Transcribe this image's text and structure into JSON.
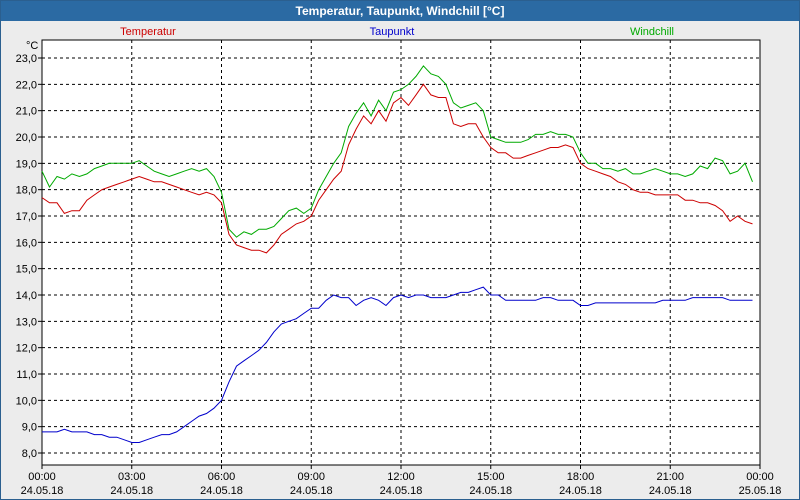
{
  "window": {
    "title": "Temperatur, Taupunkt, Windchill [°C]"
  },
  "colors": {
    "title_bg": "#2b6aa3",
    "temperatur": "#cc0000",
    "taupunkt": "#0000cc",
    "windchill": "#00aa00",
    "grid": "#000000",
    "plot_bg": "#ffffff"
  },
  "chart_data": {
    "type": "line",
    "title": "Temperatur, Taupunkt, Windchill [°C]",
    "ylabel": "°C",
    "ylim": [
      8.0,
      23.0
    ],
    "xlim": [
      0,
      24
    ],
    "grid": true,
    "yticks": [
      {
        "value": 8.0,
        "label": "8,0"
      },
      {
        "value": 9.0,
        "label": "9,0"
      },
      {
        "value": 10.0,
        "label": "10,0"
      },
      {
        "value": 11.0,
        "label": "11,0"
      },
      {
        "value": 12.0,
        "label": "12,0"
      },
      {
        "value": 13.0,
        "label": "13,0"
      },
      {
        "value": 14.0,
        "label": "14,0"
      },
      {
        "value": 15.0,
        "label": "15,0"
      },
      {
        "value": 16.0,
        "label": "16,0"
      },
      {
        "value": 17.0,
        "label": "17,0"
      },
      {
        "value": 18.0,
        "label": "18,0"
      },
      {
        "value": 19.0,
        "label": "19,0"
      },
      {
        "value": 20.0,
        "label": "20,0"
      },
      {
        "value": 21.0,
        "label": "21,0"
      },
      {
        "value": 22.0,
        "label": "22,0"
      },
      {
        "value": 23.0,
        "label": "23,0"
      }
    ],
    "xticks": [
      {
        "value": 0,
        "time": "00:00",
        "date": "24.05.18"
      },
      {
        "value": 3,
        "time": "03:00",
        "date": "24.05.18"
      },
      {
        "value": 6,
        "time": "06:00",
        "date": "24.05.18"
      },
      {
        "value": 9,
        "time": "09:00",
        "date": "24.05.18"
      },
      {
        "value": 12,
        "time": "12:00",
        "date": "24.05.18"
      },
      {
        "value": 15,
        "time": "15:00",
        "date": "24.05.18"
      },
      {
        "value": 18,
        "time": "18:00",
        "date": "24.05.18"
      },
      {
        "value": 21,
        "time": "21:00",
        "date": "24.05.18"
      },
      {
        "value": 24,
        "time": "00:00",
        "date": "25.05.18"
      }
    ],
    "series": [
      {
        "name": "Temperatur",
        "color": "#cc0000",
        "x": [
          0,
          0.25,
          0.5,
          0.75,
          1,
          1.25,
          1.5,
          1.75,
          2,
          2.25,
          2.5,
          2.75,
          3,
          3.25,
          3.5,
          3.75,
          4,
          4.25,
          4.5,
          4.75,
          5,
          5.25,
          5.5,
          5.75,
          6,
          6.25,
          6.5,
          6.75,
          7,
          7.25,
          7.5,
          7.75,
          8,
          8.25,
          8.5,
          8.75,
          9,
          9.25,
          9.5,
          9.75,
          10,
          10.25,
          10.5,
          10.75,
          11,
          11.25,
          11.5,
          11.75,
          12,
          12.25,
          12.5,
          12.75,
          13,
          13.25,
          13.5,
          13.75,
          14,
          14.25,
          14.5,
          14.75,
          15,
          15.25,
          15.5,
          15.75,
          16,
          16.25,
          16.5,
          16.75,
          17,
          17.25,
          17.5,
          17.75,
          18,
          18.25,
          18.5,
          18.75,
          19,
          19.25,
          19.5,
          19.75,
          20,
          20.25,
          20.5,
          20.75,
          21,
          21.25,
          21.5,
          21.75,
          22,
          22.25,
          22.5,
          22.75,
          23,
          23.25,
          23.5,
          23.75
        ],
        "y": [
          17.7,
          17.5,
          17.5,
          17.1,
          17.2,
          17.2,
          17.6,
          17.8,
          18.0,
          18.1,
          18.2,
          18.3,
          18.4,
          18.5,
          18.4,
          18.3,
          18.3,
          18.2,
          18.1,
          18.0,
          17.9,
          17.8,
          17.9,
          17.8,
          17.5,
          16.3,
          15.9,
          15.8,
          15.7,
          15.7,
          15.6,
          15.9,
          16.3,
          16.5,
          16.7,
          16.8,
          17.0,
          17.6,
          18.0,
          18.4,
          18.7,
          19.7,
          20.3,
          20.8,
          20.5,
          21.0,
          20.6,
          21.3,
          21.5,
          21.2,
          21.6,
          22.0,
          21.6,
          21.5,
          21.5,
          20.5,
          20.4,
          20.5,
          20.5,
          20.0,
          19.6,
          19.4,
          19.4,
          19.2,
          19.2,
          19.3,
          19.4,
          19.5,
          19.6,
          19.6,
          19.7,
          19.6,
          19.0,
          18.8,
          18.7,
          18.6,
          18.5,
          18.3,
          18.2,
          18.0,
          17.9,
          17.9,
          17.8,
          17.8,
          17.8,
          17.8,
          17.6,
          17.6,
          17.5,
          17.5,
          17.4,
          17.2,
          16.8,
          17.0,
          16.8,
          16.7
        ]
      },
      {
        "name": "Taupunkt",
        "color": "#0000cc",
        "x": [
          0,
          0.25,
          0.5,
          0.75,
          1,
          1.25,
          1.5,
          1.75,
          2,
          2.25,
          2.5,
          2.75,
          3,
          3.25,
          3.5,
          3.75,
          4,
          4.25,
          4.5,
          4.75,
          5,
          5.25,
          5.5,
          5.75,
          6,
          6.25,
          6.5,
          6.75,
          7,
          7.25,
          7.5,
          7.75,
          8,
          8.25,
          8.5,
          8.75,
          9,
          9.25,
          9.5,
          9.75,
          10,
          10.25,
          10.5,
          10.75,
          11,
          11.25,
          11.5,
          11.75,
          12,
          12.25,
          12.5,
          12.75,
          13,
          13.25,
          13.5,
          13.75,
          14,
          14.25,
          14.5,
          14.75,
          15,
          15.25,
          15.5,
          15.75,
          16,
          16.25,
          16.5,
          16.75,
          17,
          17.25,
          17.5,
          17.75,
          18,
          18.25,
          18.5,
          18.75,
          19,
          19.25,
          19.5,
          19.75,
          20,
          20.25,
          20.5,
          20.75,
          21,
          21.25,
          21.5,
          21.75,
          22,
          22.25,
          22.5,
          22.75,
          23,
          23.25,
          23.5,
          23.75
        ],
        "y": [
          8.8,
          8.8,
          8.8,
          8.9,
          8.8,
          8.8,
          8.8,
          8.7,
          8.7,
          8.6,
          8.6,
          8.5,
          8.4,
          8.4,
          8.5,
          8.6,
          8.7,
          8.7,
          8.8,
          9.0,
          9.2,
          9.4,
          9.5,
          9.7,
          10.0,
          10.7,
          11.3,
          11.5,
          11.7,
          11.9,
          12.2,
          12.6,
          12.9,
          13.0,
          13.1,
          13.3,
          13.5,
          13.5,
          13.8,
          14.0,
          13.9,
          13.9,
          13.6,
          13.8,
          13.9,
          13.8,
          13.6,
          13.9,
          14.0,
          13.9,
          14.0,
          14.0,
          13.9,
          13.9,
          13.9,
          14.0,
          14.1,
          14.1,
          14.2,
          14.3,
          14.0,
          14.0,
          13.8,
          13.8,
          13.8,
          13.8,
          13.8,
          13.9,
          13.9,
          13.8,
          13.8,
          13.8,
          13.6,
          13.6,
          13.7,
          13.7,
          13.7,
          13.7,
          13.7,
          13.7,
          13.7,
          13.7,
          13.7,
          13.8,
          13.8,
          13.8,
          13.8,
          13.9,
          13.9,
          13.9,
          13.9,
          13.9,
          13.8,
          13.8,
          13.8,
          13.8
        ]
      },
      {
        "name": "Windchill",
        "color": "#00aa00",
        "x": [
          0,
          0.25,
          0.5,
          0.75,
          1,
          1.25,
          1.5,
          1.75,
          2,
          2.25,
          2.5,
          2.75,
          3,
          3.25,
          3.5,
          3.75,
          4,
          4.25,
          4.5,
          4.75,
          5,
          5.25,
          5.5,
          5.75,
          6,
          6.25,
          6.5,
          6.75,
          7,
          7.25,
          7.5,
          7.75,
          8,
          8.25,
          8.5,
          8.75,
          9,
          9.25,
          9.5,
          9.75,
          10,
          10.25,
          10.5,
          10.75,
          11,
          11.25,
          11.5,
          11.75,
          12,
          12.25,
          12.5,
          12.75,
          13,
          13.25,
          13.5,
          13.75,
          14,
          14.25,
          14.5,
          14.75,
          15,
          15.25,
          15.5,
          15.75,
          16,
          16.25,
          16.5,
          16.75,
          17,
          17.25,
          17.5,
          17.75,
          18,
          18.25,
          18.5,
          18.75,
          19,
          19.25,
          19.5,
          19.75,
          20,
          20.25,
          20.5,
          20.75,
          21,
          21.25,
          21.5,
          21.75,
          22,
          22.25,
          22.5,
          22.75,
          23,
          23.25,
          23.5,
          23.75
        ],
        "y": [
          18.7,
          18.1,
          18.5,
          18.4,
          18.6,
          18.5,
          18.6,
          18.8,
          18.9,
          19.0,
          19.0,
          19.0,
          19.0,
          19.1,
          18.9,
          18.7,
          18.6,
          18.5,
          18.6,
          18.7,
          18.8,
          18.7,
          18.8,
          18.5,
          17.9,
          16.5,
          16.2,
          16.4,
          16.3,
          16.5,
          16.5,
          16.6,
          16.9,
          17.2,
          17.3,
          17.1,
          17.3,
          18.0,
          18.5,
          19.0,
          19.4,
          20.4,
          20.9,
          21.3,
          20.8,
          21.4,
          21.0,
          21.7,
          21.8,
          22.0,
          22.3,
          22.7,
          22.4,
          22.3,
          22.0,
          21.3,
          21.1,
          21.2,
          21.3,
          21.0,
          20.0,
          19.9,
          19.8,
          19.8,
          19.8,
          19.9,
          20.1,
          20.1,
          20.2,
          20.1,
          20.1,
          20.0,
          19.4,
          19.0,
          19.0,
          18.8,
          18.8,
          18.7,
          18.8,
          18.6,
          18.6,
          18.7,
          18.8,
          18.7,
          18.6,
          18.6,
          18.5,
          18.6,
          18.9,
          18.8,
          19.2,
          19.1,
          18.6,
          18.7,
          19.0,
          18.3
        ]
      }
    ]
  }
}
